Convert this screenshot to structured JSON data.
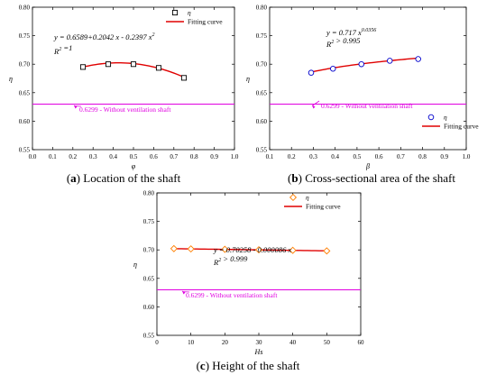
{
  "captions": {
    "a": {
      "letter": "a",
      "text": "Location of the shaft"
    },
    "b": {
      "letter": "b",
      "text": "Cross-sectional area of the shaft"
    },
    "c": {
      "letter": "c",
      "text": "Height of the shaft"
    }
  },
  "baseline_label": "0.6299 - Without ventilation shaft",
  "colors": {
    "fit": "#e00000",
    "baseline": "#e000e0",
    "marker_a": "#000000",
    "marker_b": "#0000cc",
    "marker_c": "#ff7f00",
    "arrow": "#e000e0"
  },
  "chart_data": [
    {
      "id": "a",
      "type": "scatter",
      "xlabel": "φ",
      "ylabel": "η",
      "xlim": [
        0.0,
        1.0
      ],
      "ylim": [
        0.55,
        0.8
      ],
      "xticks": [
        "0.0",
        "0.1",
        "0.2",
        "0.3",
        "0.4",
        "0.5",
        "0.6",
        "0.7",
        "0.8",
        "0.9",
        "1.0"
      ],
      "yticks": [
        "0.55",
        "0.60",
        "0.65",
        "0.70",
        "0.75",
        "0.80"
      ],
      "marker": "square",
      "points": [
        [
          0.25,
          0.695
        ],
        [
          0.375,
          0.7
        ],
        [
          0.5,
          0.7
        ],
        [
          0.625,
          0.6935
        ],
        [
          0.75,
          0.676
        ]
      ],
      "fit": {
        "kind": "poly2",
        "coef": [
          0.6589,
          0.2042,
          -0.2397
        ],
        "xrange": [
          0.25,
          0.75
        ]
      },
      "equation": "y = 0.6589+0.2042 x - 0.2397 x²",
      "r2": "R² =1",
      "baseline": 0.6299,
      "legend": {
        "marker_label": "η",
        "fit_label": "Fitting curve",
        "position": "top-right"
      }
    },
    {
      "id": "b",
      "type": "scatter",
      "xlabel": "β",
      "ylabel": "η",
      "xlim": [
        0.1,
        1.0
      ],
      "ylim": [
        0.55,
        0.8
      ],
      "xticks": [
        "0.1",
        "0.2",
        "0.3",
        "0.4",
        "0.5",
        "0.6",
        "0.7",
        "0.8",
        "0.9",
        "1.0"
      ],
      "yticks": [
        "0.55",
        "0.60",
        "0.65",
        "0.70",
        "0.75",
        "0.80"
      ],
      "marker": "circle",
      "points": [
        [
          0.29,
          0.685
        ],
        [
          0.39,
          0.692
        ],
        [
          0.52,
          0.7
        ],
        [
          0.65,
          0.706
        ],
        [
          0.78,
          0.709
        ]
      ],
      "fit": {
        "kind": "power",
        "coef": [
          0.717,
          0.0356
        ],
        "xrange": [
          0.29,
          0.78
        ]
      },
      "equation": "y = 0.717 x^0.0356",
      "r2": "R² > 0.995",
      "baseline": 0.6299,
      "legend": {
        "marker_label": "η",
        "fit_label": "Fitting curve",
        "position": "bottom-right"
      }
    },
    {
      "id": "c",
      "type": "scatter",
      "xlabel": "Hs",
      "ylabel": "η",
      "xlim": [
        0,
        60
      ],
      "ylim": [
        0.55,
        0.8
      ],
      "xticks": [
        "0",
        "10",
        "20",
        "30",
        "40",
        "50",
        "60"
      ],
      "yticks": [
        "0.55",
        "0.60",
        "0.65",
        "0.70",
        "0.75",
        "0.80"
      ],
      "marker": "diamond",
      "points": [
        [
          5,
          0.7022
        ],
        [
          10,
          0.7017
        ],
        [
          20,
          0.701
        ],
        [
          30,
          0.7002
        ],
        [
          40,
          0.6992
        ],
        [
          50,
          0.6982
        ]
      ],
      "fit": {
        "kind": "linear",
        "coef": [
          0.70258,
          -8.6e-05
        ],
        "xrange": [
          5,
          50
        ]
      },
      "equation": "y = 0.70258 - 0.000086 x",
      "r2": "R² > 0.999",
      "baseline": 0.6299,
      "legend": {
        "marker_label": "η",
        "fit_label": "Fitting curve",
        "position": "top-right"
      }
    }
  ]
}
